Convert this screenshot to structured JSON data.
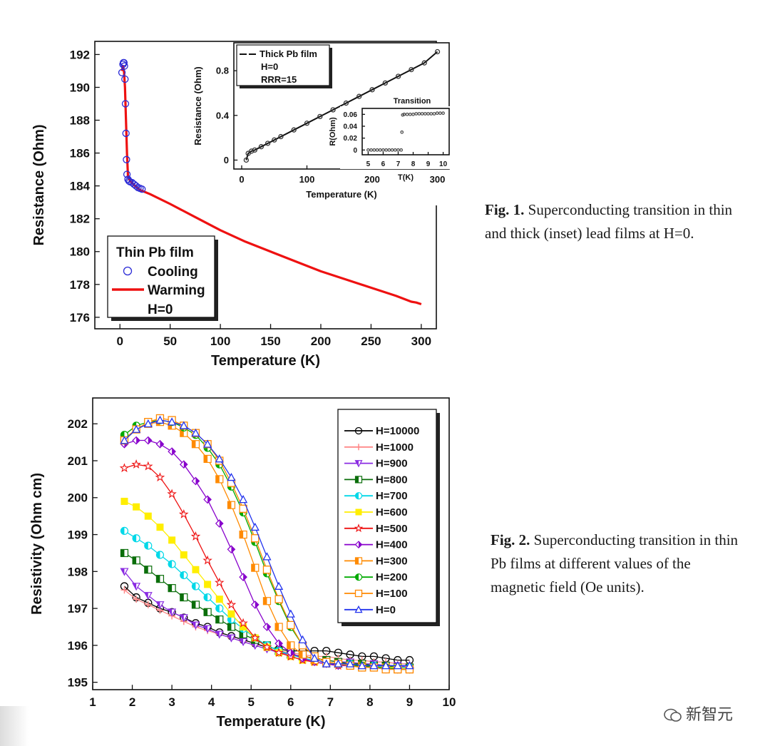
{
  "figures": [
    {
      "caption_label": "Fig. 1.",
      "caption_text": "Superconducting transition in thin and thick (inset) lead films at  H=0."
    },
    {
      "caption_label": "Fig. 2.",
      "caption_text": "Superconducting transition in thin Pb films at different values of the magnetic field (Oe units)."
    }
  ],
  "watermark": "新智元",
  "chart_data": [
    {
      "type": "line",
      "xlabel": "Temperature (K)",
      "ylabel": "Resistance (Ohm)",
      "xlim": [
        -25,
        315
      ],
      "ylim": [
        175.3,
        192.8
      ],
      "xticks": [
        0,
        50,
        100,
        150,
        200,
        250,
        300
      ],
      "yticks": [
        176,
        178,
        180,
        182,
        184,
        186,
        188,
        190,
        192
      ],
      "legend": {
        "placement": "bottom-left",
        "title": "Thin Pb film",
        "entries": [
          "Cooling",
          "Warming"
        ],
        "note": "H=0"
      },
      "series": [
        {
          "name": "Cooling",
          "color": "#2a2ad6",
          "marker": "circle",
          "x": [
            2,
            3,
            3.5,
            4,
            4.5,
            5,
            5.5,
            6,
            6.5,
            7,
            8,
            9,
            10,
            12,
            14,
            16,
            18,
            20,
            22
          ],
          "y": [
            190.9,
            191.4,
            191.5,
            191.5,
            191.3,
            190.5,
            189.0,
            187.2,
            185.6,
            184.7,
            184.4,
            184.3,
            184.25,
            184.2,
            184.1,
            184.0,
            183.9,
            183.85,
            183.8
          ]
        },
        {
          "name": "Warming",
          "color": "#ee1111",
          "x": [
            2,
            3,
            4,
            5,
            6,
            7,
            8,
            10,
            15,
            20,
            30,
            50,
            75,
            100,
            125,
            150,
            175,
            200,
            225,
            250,
            275,
            290,
            295,
            300
          ],
          "y": [
            191.0,
            191.3,
            191.0,
            190.0,
            188.0,
            186.0,
            184.6,
            184.3,
            184.0,
            183.75,
            183.5,
            182.9,
            182.1,
            181.3,
            180.6,
            180.0,
            179.4,
            178.8,
            178.3,
            177.8,
            177.3,
            176.95,
            176.9,
            176.8
          ]
        }
      ],
      "inset": {
        "type": "line",
        "xlabel": "Temperature (K)",
        "ylabel": "Resistance (Ohm)",
        "xlim": [
          -12,
          318
        ],
        "ylim": [
          -0.08,
          1.05
        ],
        "xticks": [
          0,
          100,
          200,
          300
        ],
        "yticks": [
          0.0,
          0.4,
          0.8
        ],
        "legend": {
          "placement": "top-left",
          "entries": [
            "Thick Pb film"
          ],
          "notes": [
            "H=0",
            "RRR=15"
          ]
        },
        "series": [
          {
            "name": "Thick Pb film",
            "color": "#111111",
            "x": [
              7,
              10,
              15,
              20,
              30,
              40,
              50,
              60,
              80,
              100,
              120,
              140,
              160,
              180,
              200,
              220,
              240,
              260,
              280,
              300
            ],
            "y": [
              0.0,
              0.06,
              0.08,
              0.09,
              0.12,
              0.15,
              0.18,
              0.21,
              0.27,
              0.33,
              0.39,
              0.45,
              0.51,
              0.57,
              0.63,
              0.69,
              0.75,
              0.81,
              0.87,
              0.97
            ]
          }
        ],
        "subinset": {
          "type": "line",
          "title": "Transition",
          "xlabel": "T(K)",
          "ylabel": "R(Ohm)",
          "xlim": [
            4.6,
            10.4
          ],
          "ylim": [
            -0.008,
            0.07
          ],
          "xticks": [
            5,
            6,
            7,
            8,
            9,
            10
          ],
          "yticks": [
            0.0,
            0.02,
            0.04,
            0.06
          ],
          "series": [
            {
              "color": "#555555",
              "x": [
                5,
                5.2,
                5.4,
                5.6,
                5.8,
                6,
                6.2,
                6.4,
                6.6,
                6.8,
                7,
                7.2,
                7.25,
                7.3,
                7.4,
                7.6,
                7.8,
                8,
                8.2,
                8.4,
                8.6,
                8.8,
                9,
                9.2,
                9.4,
                9.6,
                9.8,
                10
              ],
              "y": [
                0,
                0,
                0,
                0,
                0,
                0,
                0,
                0,
                0,
                0,
                0,
                0,
                0.03,
                0.059,
                0.06,
                0.06,
                0.06,
                0.06,
                0.061,
                0.061,
                0.061,
                0.061,
                0.061,
                0.061,
                0.061,
                0.062,
                0.062,
                0.062
              ]
            }
          ]
        }
      }
    },
    {
      "type": "line",
      "xlabel": "Temperature (K)",
      "ylabel": "Resistivity (Ohm cm)",
      "xlim": [
        1,
        10
      ],
      "ylim": [
        194.8,
        202.7
      ],
      "xticks": [
        1,
        2,
        3,
        4,
        5,
        6,
        7,
        8,
        9,
        10
      ],
      "yticks": [
        195,
        196,
        197,
        198,
        199,
        200,
        201,
        202
      ],
      "legend": {
        "placement": "right"
      },
      "x": [
        1.8,
        2.1,
        2.4,
        2.7,
        3.0,
        3.3,
        3.6,
        3.9,
        4.2,
        4.5,
        4.8,
        5.1,
        5.4,
        5.7,
        6.0,
        6.3,
        6.6,
        6.9,
        7.2,
        7.5,
        7.8,
        8.1,
        8.4,
        8.7,
        9.0
      ],
      "series": [
        {
          "name": "H=10000",
          "color": "#000000",
          "marker": "open-circle",
          "values": [
            197.6,
            197.3,
            197.15,
            197.0,
            196.9,
            196.75,
            196.6,
            196.5,
            196.35,
            196.25,
            196.15,
            196.05,
            195.95,
            195.9,
            195.85,
            195.85,
            195.85,
            195.85,
            195.8,
            195.75,
            195.7,
            195.7,
            195.65,
            195.6,
            195.6
          ]
        },
        {
          "name": "H=1000",
          "color": "#ff8888",
          "marker": "plus",
          "values": [
            197.5,
            197.25,
            197.1,
            196.95,
            196.8,
            196.65,
            196.5,
            196.4,
            196.3,
            196.2,
            196.1,
            196.0,
            195.9,
            195.85,
            195.8,
            195.75,
            195.7,
            195.7,
            195.65,
            195.6,
            195.6,
            195.55,
            195.55,
            195.5,
            195.5
          ]
        },
        {
          "name": "H=900",
          "color": "#8a2be2",
          "marker": "down-triangle",
          "values": [
            198.0,
            197.6,
            197.35,
            197.1,
            196.9,
            196.75,
            196.55,
            196.45,
            196.3,
            196.2,
            196.1,
            196.0,
            195.9,
            195.8,
            195.75,
            195.7,
            195.65,
            195.6,
            195.55,
            195.55,
            195.5,
            195.5,
            195.45,
            195.45,
            195.4
          ]
        },
        {
          "name": "H=800",
          "color": "#0a6e0a",
          "marker": "half-square",
          "values": [
            198.5,
            198.3,
            198.05,
            197.8,
            197.55,
            197.3,
            197.1,
            196.9,
            196.7,
            196.5,
            196.3,
            196.15,
            196.0,
            195.85,
            195.75,
            195.7,
            195.65,
            195.6,
            195.55,
            195.5,
            195.5,
            195.45,
            195.45,
            195.4,
            195.4
          ]
        },
        {
          "name": "H=700",
          "color": "#00d8e8",
          "marker": "half-circle",
          "values": [
            199.1,
            198.9,
            198.7,
            198.45,
            198.2,
            197.9,
            197.6,
            197.3,
            197.0,
            196.7,
            196.45,
            196.2,
            196.0,
            195.85,
            195.75,
            195.65,
            195.6,
            195.55,
            195.5,
            195.5,
            195.45,
            195.45,
            195.4,
            195.4,
            195.4
          ]
        },
        {
          "name": "H=600",
          "color": "#ffee00",
          "marker": "square",
          "values": [
            199.9,
            199.75,
            199.5,
            199.2,
            198.85,
            198.45,
            198.05,
            197.65,
            197.25,
            196.85,
            196.5,
            196.2,
            195.95,
            195.8,
            195.7,
            195.6,
            195.55,
            195.5,
            195.5,
            195.45,
            195.45,
            195.4,
            195.4,
            195.4,
            195.35
          ]
        },
        {
          "name": "H=500",
          "color": "#ee1111",
          "marker": "star",
          "values": [
            200.8,
            200.9,
            200.85,
            200.55,
            200.1,
            199.55,
            198.95,
            198.3,
            197.7,
            197.1,
            196.6,
            196.2,
            195.95,
            195.8,
            195.7,
            195.6,
            195.55,
            195.5,
            195.45,
            195.45,
            195.4,
            195.4,
            195.4,
            195.35,
            195.35
          ]
        },
        {
          "name": "H=400",
          "color": "#8800cc",
          "marker": "half-diamond",
          "values": [
            201.45,
            201.55,
            201.55,
            201.45,
            201.25,
            200.9,
            200.45,
            199.95,
            199.3,
            198.6,
            197.85,
            197.1,
            196.5,
            196.05,
            195.8,
            195.65,
            195.55,
            195.5,
            195.45,
            195.45,
            195.4,
            195.4,
            195.35,
            195.35,
            195.35
          ]
        },
        {
          "name": "H=300",
          "color": "#ff8a00",
          "marker": "half-square",
          "values": [
            201.6,
            201.85,
            202.0,
            202.05,
            201.95,
            201.75,
            201.45,
            201.05,
            200.5,
            199.8,
            199.0,
            198.1,
            197.2,
            196.5,
            196.0,
            195.75,
            195.6,
            195.55,
            195.5,
            195.45,
            195.45,
            195.4,
            195.4,
            195.35,
            195.35
          ]
        },
        {
          "name": "H=200",
          "color": "#00aa00",
          "marker": "half-circle",
          "values": [
            201.7,
            201.95,
            202.05,
            202.1,
            202.05,
            201.9,
            201.7,
            201.35,
            200.9,
            200.3,
            199.6,
            198.8,
            197.95,
            197.2,
            196.5,
            196.0,
            195.7,
            195.55,
            195.5,
            195.45,
            195.45,
            195.4,
            195.4,
            195.35,
            195.35
          ]
        },
        {
          "name": "H=100",
          "color": "#ff8800",
          "marker": "open-square",
          "values": [
            201.55,
            201.85,
            202.05,
            202.15,
            202.1,
            201.95,
            201.75,
            201.45,
            201.0,
            200.4,
            199.7,
            198.9,
            198.05,
            197.25,
            196.55,
            196.0,
            195.7,
            195.55,
            195.5,
            195.45,
            195.4,
            195.4,
            195.35,
            195.35,
            195.35
          ]
        },
        {
          "name": "H=0",
          "color": "#2233ee",
          "marker": "open-triangle",
          "values": [
            201.55,
            201.85,
            202.0,
            202.1,
            202.05,
            201.95,
            201.75,
            201.45,
            201.05,
            200.55,
            199.95,
            199.2,
            198.4,
            197.6,
            196.85,
            196.15,
            195.65,
            195.5,
            195.5,
            195.5,
            195.45,
            195.45,
            195.45,
            195.45,
            195.45
          ]
        }
      ]
    }
  ]
}
